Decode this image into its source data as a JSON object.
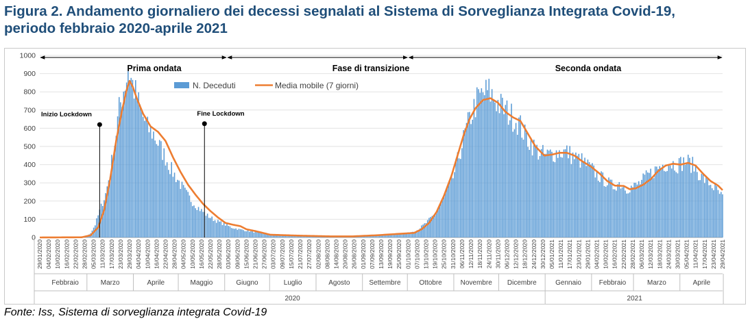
{
  "title_line1": "Figura 2. Andamento giornaliero dei decessi segnalati al Sistema di Sorveglianza Integrata Covid-19,",
  "title_line2": "periodo febbraio 2020-aprile 2021",
  "source": "Fonte: Iss, Sistema di sorveglianza integrata Covid-19",
  "chart_data": {
    "type": "bar",
    "start_date": "2020-01-29",
    "end_date": "2021-04-29",
    "ylim": [
      0,
      1000
    ],
    "yticks": [
      0,
      100,
      200,
      300,
      400,
      500,
      600,
      700,
      800,
      900,
      1000
    ],
    "grid": "horizontal",
    "legend": {
      "position": "top",
      "entries": [
        "N. Deceduti",
        "Media mobile (7 giorni)"
      ]
    },
    "series": [
      {
        "name": "N. Deceduti",
        "type": "bar",
        "color": "#5b9bd5",
        "keypoints": [
          [
            "2020-01-29",
            0
          ],
          [
            "2020-02-22",
            1
          ],
          [
            "2020-02-29",
            3
          ],
          [
            "2020-03-03",
            25
          ],
          [
            "2020-03-06",
            70
          ],
          [
            "2020-03-10",
            170
          ],
          [
            "2020-03-13",
            240
          ],
          [
            "2020-03-16",
            360
          ],
          [
            "2020-03-19",
            520
          ],
          [
            "2020-03-22",
            700
          ],
          [
            "2020-03-25",
            820
          ],
          [
            "2020-03-27",
            880
          ],
          [
            "2020-03-28",
            930
          ],
          [
            "2020-03-30",
            870
          ],
          [
            "2020-04-03",
            760
          ],
          [
            "2020-04-06",
            680
          ],
          [
            "2020-04-10",
            600
          ],
          [
            "2020-04-14",
            570
          ],
          [
            "2020-04-18",
            500
          ],
          [
            "2020-04-22",
            440
          ],
          [
            "2020-04-26",
            370
          ],
          [
            "2020-04-30",
            320
          ],
          [
            "2020-05-05",
            250
          ],
          [
            "2020-05-10",
            195
          ],
          [
            "2020-05-15",
            155
          ],
          [
            "2020-05-20",
            120
          ],
          [
            "2020-05-25",
            95
          ],
          [
            "2020-06-01",
            70
          ],
          [
            "2020-06-05",
            55
          ],
          [
            "2020-06-10",
            45
          ],
          [
            "2020-06-20",
            30
          ],
          [
            "2020-07-01",
            15
          ],
          [
            "2020-07-15",
            10
          ],
          [
            "2020-08-01",
            8
          ],
          [
            "2020-08-20",
            7
          ],
          [
            "2020-09-01",
            9
          ],
          [
            "2020-09-15",
            15
          ],
          [
            "2020-10-01",
            25
          ],
          [
            "2020-10-07",
            40
          ],
          [
            "2020-10-13",
            80
          ],
          [
            "2020-10-19",
            130
          ],
          [
            "2020-10-25",
            220
          ],
          [
            "2020-10-31",
            330
          ],
          [
            "2020-11-04",
            450
          ],
          [
            "2020-11-08",
            570
          ],
          [
            "2020-11-12",
            670
          ],
          [
            "2020-11-16",
            750
          ],
          [
            "2020-11-20",
            790
          ],
          [
            "2020-11-24",
            800
          ],
          [
            "2020-11-28",
            760
          ],
          [
            "2020-12-02",
            720
          ],
          [
            "2020-12-06",
            690
          ],
          [
            "2020-12-10",
            660
          ],
          [
            "2020-12-14",
            630
          ],
          [
            "2020-12-18",
            560
          ],
          [
            "2020-12-22",
            520
          ],
          [
            "2020-12-27",
            470
          ],
          [
            "2021-01-01",
            450
          ],
          [
            "2021-01-05",
            460
          ],
          [
            "2021-01-10",
            470
          ],
          [
            "2021-01-15",
            470
          ],
          [
            "2021-01-20",
            440
          ],
          [
            "2021-01-25",
            420
          ],
          [
            "2021-01-31",
            380
          ],
          [
            "2021-02-05",
            340
          ],
          [
            "2021-02-10",
            310
          ],
          [
            "2021-02-15",
            280
          ],
          [
            "2021-02-19",
            300
          ],
          [
            "2021-02-24",
            270
          ],
          [
            "2021-03-01",
            280
          ],
          [
            "2021-03-05",
            300
          ],
          [
            "2021-03-10",
            340
          ],
          [
            "2021-03-15",
            370
          ],
          [
            "2021-03-20",
            400
          ],
          [
            "2021-03-25",
            410
          ],
          [
            "2021-03-30",
            400
          ],
          [
            "2021-04-05",
            420
          ],
          [
            "2021-04-10",
            390
          ],
          [
            "2021-04-15",
            330
          ],
          [
            "2021-04-20",
            300
          ],
          [
            "2021-04-25",
            260
          ],
          [
            "2021-04-29",
            220
          ]
        ]
      },
      {
        "name": "Media mobile (7 giorni)",
        "type": "line",
        "color": "#ed7d31",
        "keypoints": [
          [
            "2020-01-29",
            0
          ],
          [
            "2020-02-26",
            1
          ],
          [
            "2020-03-03",
            12
          ],
          [
            "2020-03-08",
            55
          ],
          [
            "2020-03-12",
            150
          ],
          [
            "2020-03-16",
            320
          ],
          [
            "2020-03-20",
            530
          ],
          [
            "2020-03-24",
            700
          ],
          [
            "2020-03-27",
            810
          ],
          [
            "2020-03-29",
            860
          ],
          [
            "2020-03-31",
            830
          ],
          [
            "2020-04-03",
            760
          ],
          [
            "2020-04-07",
            680
          ],
          [
            "2020-04-12",
            610
          ],
          [
            "2020-04-17",
            580
          ],
          [
            "2020-04-22",
            530
          ],
          [
            "2020-04-27",
            440
          ],
          [
            "2020-05-02",
            360
          ],
          [
            "2020-05-07",
            290
          ],
          [
            "2020-05-12",
            235
          ],
          [
            "2020-05-17",
            185
          ],
          [
            "2020-05-22",
            145
          ],
          [
            "2020-05-27",
            110
          ],
          [
            "2020-06-01",
            80
          ],
          [
            "2020-06-06",
            70
          ],
          [
            "2020-06-11",
            62
          ],
          [
            "2020-06-15",
            45
          ],
          [
            "2020-06-21",
            35
          ],
          [
            "2020-07-01",
            15
          ],
          [
            "2020-07-20",
            10
          ],
          [
            "2020-08-10",
            6
          ],
          [
            "2020-08-25",
            6
          ],
          [
            "2020-09-10",
            12
          ],
          [
            "2020-09-25",
            20
          ],
          [
            "2020-10-05",
            25
          ],
          [
            "2020-10-10",
            45
          ],
          [
            "2020-10-15",
            80
          ],
          [
            "2020-10-20",
            140
          ],
          [
            "2020-10-25",
            230
          ],
          [
            "2020-10-30",
            340
          ],
          [
            "2020-11-03",
            450
          ],
          [
            "2020-11-07",
            560
          ],
          [
            "2020-11-11",
            650
          ],
          [
            "2020-11-15",
            710
          ],
          [
            "2020-11-20",
            755
          ],
          [
            "2020-11-25",
            765
          ],
          [
            "2020-11-30",
            740
          ],
          [
            "2020-12-05",
            690
          ],
          [
            "2020-12-10",
            660
          ],
          [
            "2020-12-15",
            640
          ],
          [
            "2020-12-20",
            570
          ],
          [
            "2020-12-25",
            500
          ],
          [
            "2020-12-31",
            450
          ],
          [
            "2021-01-05",
            455
          ],
          [
            "2021-01-10",
            465
          ],
          [
            "2021-01-15",
            465
          ],
          [
            "2021-01-20",
            450
          ],
          [
            "2021-01-25",
            420
          ],
          [
            "2021-01-31",
            390
          ],
          [
            "2021-02-06",
            350
          ],
          [
            "2021-02-11",
            310
          ],
          [
            "2021-02-16",
            285
          ],
          [
            "2021-02-22",
            283
          ],
          [
            "2021-02-26",
            265
          ],
          [
            "2021-03-02",
            270
          ],
          [
            "2021-03-07",
            290
          ],
          [
            "2021-03-12",
            320
          ],
          [
            "2021-03-17",
            365
          ],
          [
            "2021-03-22",
            395
          ],
          [
            "2021-03-27",
            405
          ],
          [
            "2021-04-01",
            400
          ],
          [
            "2021-04-06",
            410
          ],
          [
            "2021-04-11",
            395
          ],
          [
            "2021-04-16",
            350
          ],
          [
            "2021-04-21",
            310
          ],
          [
            "2021-04-26",
            285
          ],
          [
            "2021-04-29",
            260
          ]
        ]
      }
    ],
    "x_tick_labels": [
      "29/01/2020",
      "04/02/2020",
      "10/02/2020",
      "16/02/2020",
      "22/02/2020",
      "28/02/2020",
      "05/03/2020",
      "11/03/2020",
      "17/03/2020",
      "23/03/2020",
      "29/03/2020",
      "04/04/2020",
      "10/04/2020",
      "16/04/2020",
      "22/04/2020",
      "28/04/2020",
      "04/05/2020",
      "10/05/2020",
      "16/05/2020",
      "22/05/2020",
      "28/05/2020",
      "03/06/2020",
      "09/06/2020",
      "15/06/2020",
      "21/06/2020",
      "27/06/2020",
      "03/07/2020",
      "09/07/2020",
      "15/07/2020",
      "21/07/2020",
      "27/07/2020",
      "02/08/2020",
      "08/08/2020",
      "14/08/2020",
      "20/08/2020",
      "26/08/2020",
      "01/09/2020",
      "07/09/2020",
      "13/09/2020",
      "19/09/2020",
      "25/09/2020",
      "01/10/2020",
      "07/10/2020",
      "13/10/2020",
      "19/10/2020",
      "25/10/2020",
      "31/10/2020",
      "06/11/2020",
      "12/11/2020",
      "18/11/2020",
      "24/11/2020",
      "30/11/2020",
      "06/12/2020",
      "12/12/2020",
      "18/12/2020",
      "24/12/2020",
      "30/12/2020",
      "05/01/2021",
      "11/01/2021",
      "17/01/2021",
      "23/01/2021",
      "29/01/2021",
      "04/02/2021",
      "10/02/2021",
      "16/02/2021",
      "22/02/2021",
      "28/02/2021",
      "06/03/2021",
      "12/03/2021",
      "18/03/2021",
      "24/03/2021",
      "30/03/2021",
      "05/04/2021",
      "11/04/2021",
      "17/04/2021",
      "23/04/2021",
      "29/04/2021"
    ],
    "months": [
      {
        "label": "Febbraio",
        "start": "2020-02-01",
        "end": "2020-02-29"
      },
      {
        "label": "Marzo",
        "start": "2020-03-01",
        "end": "2020-03-31"
      },
      {
        "label": "Aprile",
        "start": "2020-04-01",
        "end": "2020-04-30"
      },
      {
        "label": "Maggio",
        "start": "2020-05-01",
        "end": "2020-05-31"
      },
      {
        "label": "Giugno",
        "start": "2020-06-01",
        "end": "2020-06-30"
      },
      {
        "label": "Luglio",
        "start": "2020-07-01",
        "end": "2020-07-31"
      },
      {
        "label": "Agosto",
        "start": "2020-08-01",
        "end": "2020-08-31"
      },
      {
        "label": "Settembre",
        "start": "2020-09-01",
        "end": "2020-09-30"
      },
      {
        "label": "Ottobre",
        "start": "2020-10-01",
        "end": "2020-10-31"
      },
      {
        "label": "Novembre",
        "start": "2020-11-01",
        "end": "2020-11-30"
      },
      {
        "label": "Dicembre",
        "start": "2020-12-01",
        "end": "2020-12-31"
      },
      {
        "label": "Gennaio",
        "start": "2021-01-01",
        "end": "2021-01-31"
      },
      {
        "label": "Febbraio",
        "start": "2021-02-01",
        "end": "2021-02-28"
      },
      {
        "label": "Marzo",
        "start": "2021-03-01",
        "end": "2021-03-31"
      },
      {
        "label": "Aprile",
        "start": "2021-04-01",
        "end": "2021-04-29"
      }
    ],
    "years": [
      {
        "label": "2020",
        "start": "2020-01-29",
        "end": "2020-12-31"
      },
      {
        "label": "2021",
        "start": "2021-01-01",
        "end": "2021-04-29"
      }
    ],
    "phases": [
      {
        "label": "Prima ondata",
        "start": "2020-01-29",
        "end": "2020-06-02"
      },
      {
        "label": "Fase di transizione",
        "start": "2020-06-02",
        "end": "2020-10-01"
      },
      {
        "label": "Seconda ondata",
        "start": "2020-10-01",
        "end": "2021-04-29"
      }
    ],
    "annotations": [
      {
        "label": "Inizio Lockdown",
        "date": "2020-03-09",
        "value": 620
      },
      {
        "label": "Fine Lockdown",
        "date": "2020-05-18",
        "value": 625
      }
    ]
  }
}
